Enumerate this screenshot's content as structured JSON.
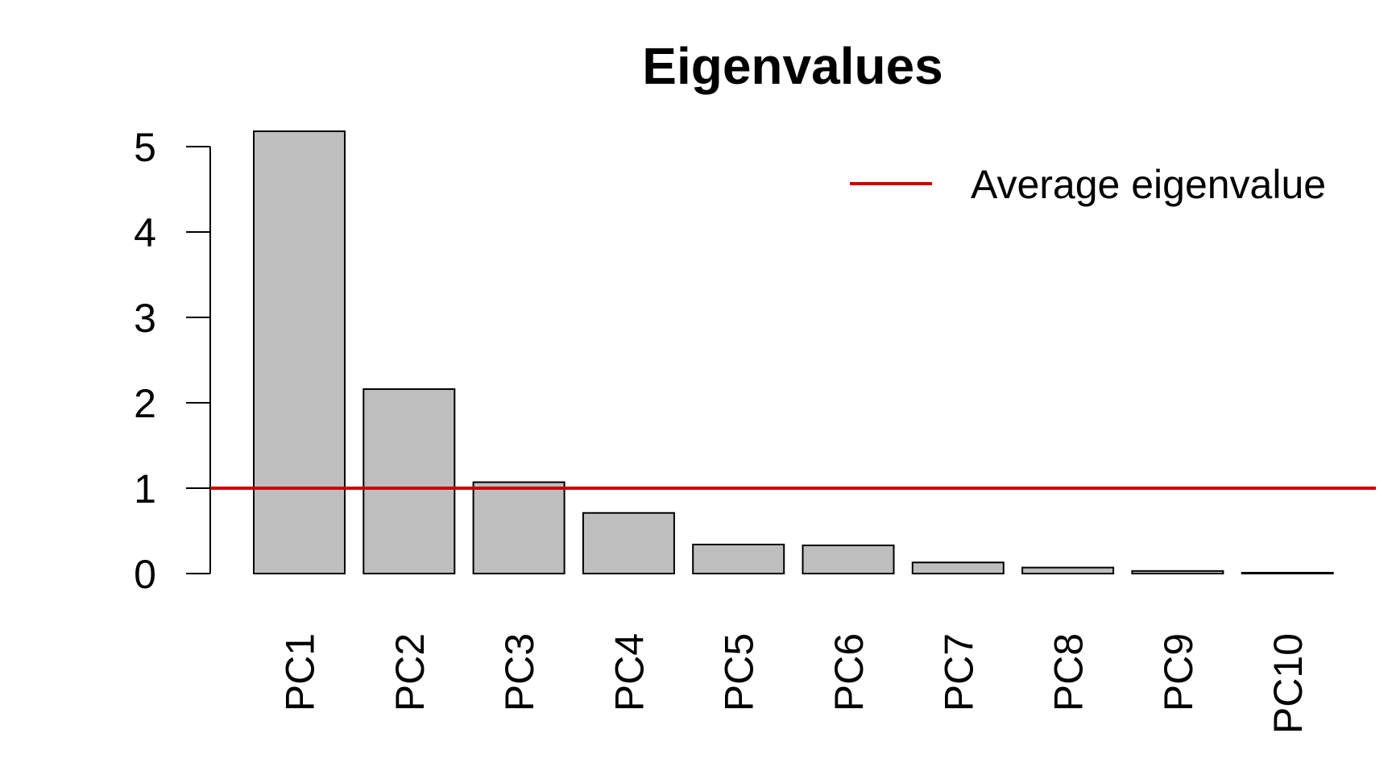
{
  "chart_data": {
    "type": "bar",
    "title": "Eigenvalues",
    "xlabel": "",
    "ylabel": "",
    "categories": [
      "PC1",
      "PC2",
      "PC3",
      "PC4",
      "PC5",
      "PC6",
      "PC7",
      "PC8",
      "PC9",
      "PC10"
    ],
    "values": [
      5.18,
      2.16,
      1.07,
      0.71,
      0.34,
      0.33,
      0.13,
      0.07,
      0.03,
      0.01
    ],
    "yticks": [
      "0",
      "1",
      "2",
      "3",
      "4",
      "5"
    ],
    "ylim": [
      0,
      5.3
    ],
    "grid": false,
    "reference_line": {
      "name": "Average eigenvalue",
      "value": 1,
      "color": "#cc0000"
    },
    "legend": {
      "entries": [
        "Average eigenvalue"
      ],
      "placement": "top-right"
    },
    "colors": {
      "bar_fill": "#bebebe",
      "bar_stroke": "#000000",
      "axis": "#000000"
    }
  }
}
